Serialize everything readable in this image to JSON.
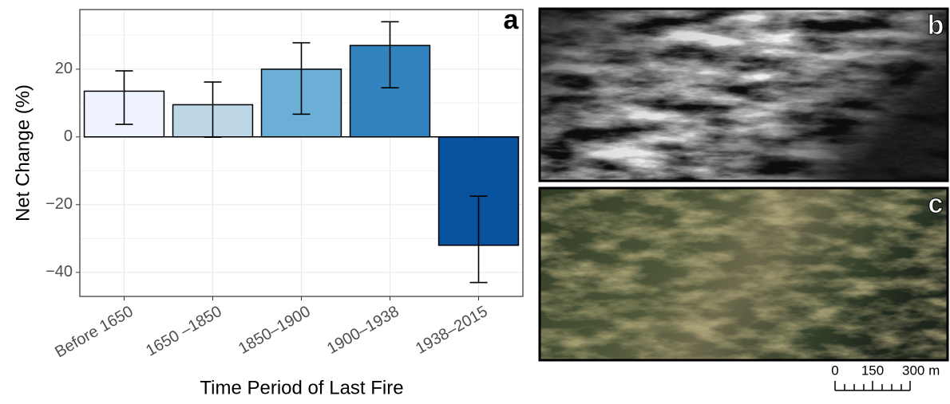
{
  "chart_data": {
    "type": "bar",
    "panel_label": "a",
    "x_label": "Time Period of Last Fire",
    "y_label": "Net Change (%)",
    "categories": [
      "Before 1650",
      "1650 –1850",
      "1850–1900",
      "1900–1938",
      "1938–2015"
    ],
    "values": [
      13.5,
      9.5,
      20,
      27,
      -32
    ],
    "error_low": [
      3.7,
      -0.1,
      6.7,
      14.5,
      -43
    ],
    "error_high": [
      19.5,
      16.2,
      27.8,
      34,
      -17.5
    ],
    "colors": [
      "#eff3ff",
      "#bdd7e7",
      "#6baed6",
      "#3182bd",
      "#08519c"
    ],
    "ylim": [
      -47.1,
      37.6
    ],
    "yticks": [
      {
        "value": -40,
        "label": "−40"
      },
      {
        "value": -20,
        "label": "−20"
      },
      0,
      20
    ],
    "minor_yticks": [
      -30,
      -10,
      10,
      30
    ],
    "grid": true
  },
  "panels": {
    "b": {
      "label": "b"
    },
    "c": {
      "label": "c"
    }
  },
  "scale_bar": {
    "labels": [
      "0",
      "150",
      "300 m"
    ]
  }
}
